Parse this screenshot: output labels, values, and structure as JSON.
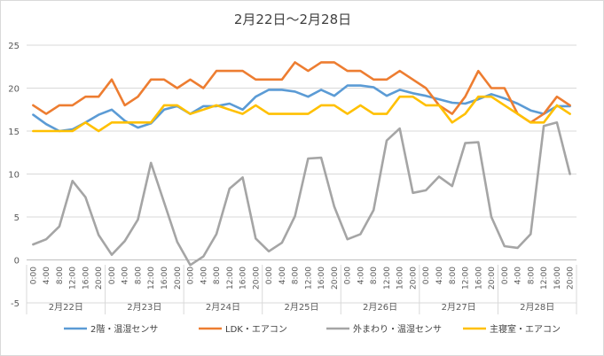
{
  "chart_data": {
    "type": "line",
    "title": "2月22日～2月28日",
    "xlabel": "",
    "ylabel": "",
    "ylim": [
      -5,
      25
    ],
    "yticks": [
      -5,
      0,
      5,
      10,
      15,
      20,
      25
    ],
    "grid": true,
    "legend_position": "bottom",
    "x": [
      "0:00",
      "4:00",
      "8:00",
      "12:00",
      "16:00",
      "20:00",
      "0:00",
      "4:00",
      "8:00",
      "12:00",
      "16:00",
      "20:00",
      "0:00",
      "4:00",
      "8:00",
      "12:00",
      "16:00",
      "20:00",
      "0:00",
      "4:00",
      "8:00",
      "12:00",
      "16:00",
      "20:00",
      "0:00",
      "4:00",
      "8:00",
      "12:00",
      "16:00",
      "20:00",
      "0:00",
      "4:00",
      "8:00",
      "12:00",
      "16:00",
      "20:00",
      "0:00",
      "4:00",
      "8:00",
      "12:00",
      "16:00",
      "20:00"
    ],
    "groups": [
      "2月22日",
      "2月23日",
      "2月24日",
      "2月25日",
      "2月26日",
      "2月27日",
      "2月28日"
    ],
    "series": [
      {
        "name": "2階・温湿センサ",
        "color": "#5b9bd5",
        "values": [
          16.9,
          15.8,
          15.0,
          15.2,
          16.0,
          16.9,
          17.5,
          16.2,
          15.4,
          15.9,
          17.5,
          17.9,
          17.0,
          17.9,
          17.9,
          18.2,
          17.5,
          19.0,
          19.8,
          19.8,
          19.6,
          19.0,
          19.8,
          19.1,
          20.3,
          20.3,
          20.1,
          19.1,
          19.8,
          19.4,
          19.1,
          18.7,
          18.3,
          18.2,
          18.7,
          19.3,
          18.8,
          18.2,
          17.4,
          17.0,
          17.9,
          17.9
        ]
      },
      {
        "name": "LDK・エアコン",
        "color": "#ed7d31",
        "values": [
          18,
          17,
          18,
          18,
          19,
          19,
          21,
          18,
          19,
          21,
          21,
          20,
          21,
          20,
          22,
          22,
          22,
          21,
          21,
          21,
          23,
          22,
          23,
          23,
          22,
          22,
          21,
          21,
          22,
          21,
          20,
          18,
          17,
          19,
          22,
          20,
          20,
          17,
          16,
          17,
          19,
          18
        ]
      },
      {
        "name": "外まわり・温湿センサ",
        "color": "#a5a5a5",
        "values": [
          1.8,
          2.4,
          3.9,
          9.2,
          7.3,
          2.9,
          0.6,
          2.2,
          4.7,
          11.3,
          6.7,
          2.1,
          -0.6,
          0.4,
          3.0,
          8.3,
          9.6,
          2.5,
          1.0,
          2.0,
          5.1,
          11.8,
          11.9,
          6.2,
          2.4,
          3.0,
          5.8,
          13.9,
          15.3,
          7.8,
          8.1,
          9.7,
          8.6,
          13.6,
          13.7,
          5.0,
          1.6,
          1.4,
          3.0,
          15.6,
          16.0,
          10.0
        ]
      },
      {
        "name": "主寝室・エアコン",
        "color": "#ffc000",
        "values": [
          15,
          15,
          15,
          15,
          16,
          15,
          16,
          16,
          16,
          16,
          18,
          18,
          17,
          17.5,
          18,
          17.5,
          17,
          18,
          17,
          17,
          17,
          17,
          18,
          18,
          17,
          18,
          17,
          17,
          19,
          19,
          18,
          18,
          16,
          17,
          19,
          19,
          18,
          17,
          16,
          16,
          18,
          17
        ]
      }
    ]
  }
}
